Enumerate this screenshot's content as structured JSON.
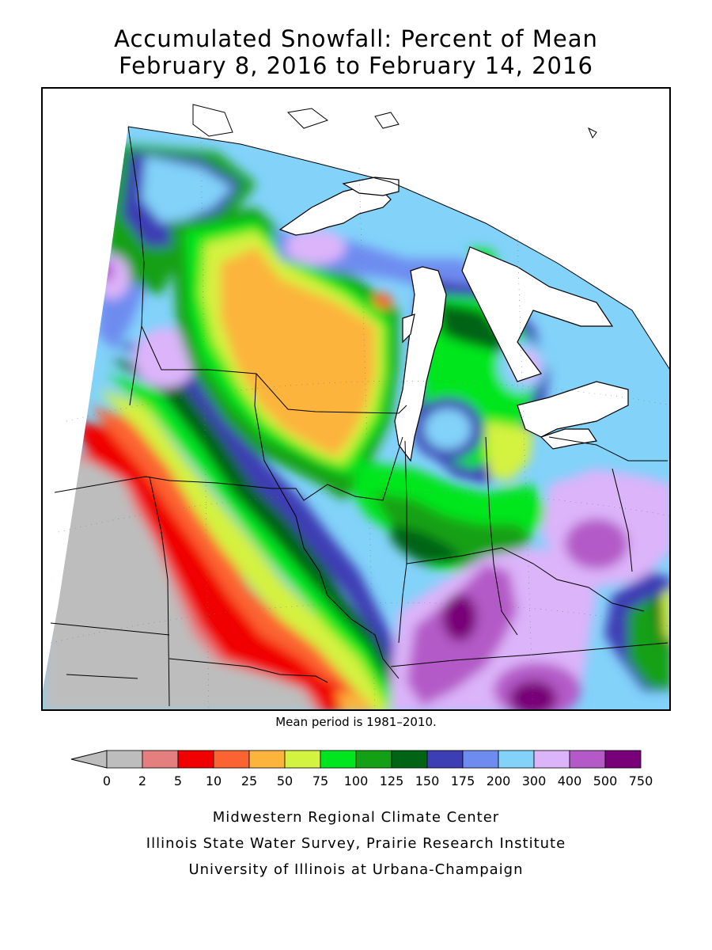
{
  "title": {
    "line1": "Accumulated Snowfall: Percent of Mean",
    "line2": "February 8, 2016 to February 14, 2016"
  },
  "note": "Mean period is 1981–2010.",
  "legend": {
    "bins": [
      {
        "color": "#bdbdbd"
      },
      {
        "color": "#e57f7f"
      },
      {
        "color": "#f00000"
      },
      {
        "color": "#fb6432"
      },
      {
        "color": "#fcb43c"
      },
      {
        "color": "#d4f240"
      },
      {
        "color": "#00e61e"
      },
      {
        "color": "#14a014"
      },
      {
        "color": "#006414"
      },
      {
        "color": "#3e3eb4"
      },
      {
        "color": "#6e8cf0"
      },
      {
        "color": "#82d2fa"
      },
      {
        "color": "#dcb4fa"
      },
      {
        "color": "#b45ac8"
      },
      {
        "color": "#780078"
      }
    ],
    "tick_labels": [
      "0",
      "2",
      "5",
      "10",
      "25",
      "50",
      "75",
      "100",
      "125",
      "150",
      "175",
      "200",
      "300",
      "400",
      "500",
      "750"
    ]
  },
  "credits": [
    "Midwestern Regional Climate Center",
    "Illinois State Water Survey, Prairie Research Institute",
    "University of Illinois at Urbana-Champaign"
  ]
}
